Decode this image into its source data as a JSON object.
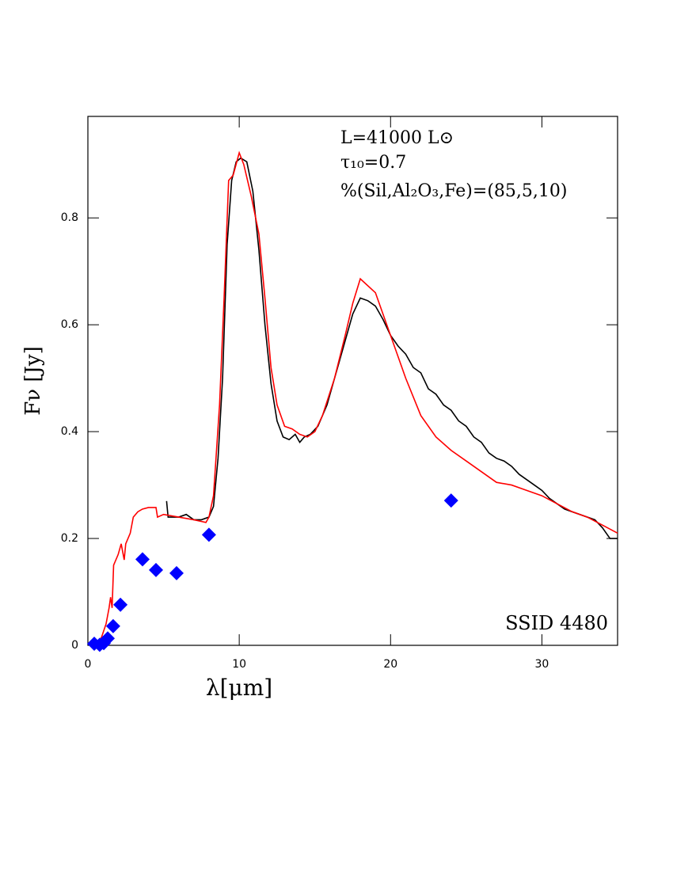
{
  "chart_data": {
    "type": "line",
    "x_label": "λ[μm]",
    "y_label": "Fν [Jy]",
    "annotations": [
      "L=41000 L⊙",
      "τ₁₀=0.7",
      "%(Sil,Al₂O₃,Fe)=(85,5,10)",
      "SSID 4480"
    ],
    "xlim": [
      0,
      35
    ],
    "ylim": [
      0,
      0.99
    ],
    "xticks": [
      0,
      10,
      20,
      30
    ],
    "yticks": [
      0,
      0.2,
      0.4,
      0.6,
      0.8
    ],
    "series": [
      {
        "type": "line",
        "color": "#000000",
        "x": [
          5.2,
          5.3,
          6,
          6.5,
          7,
          7.5,
          8,
          8.3,
          8.6,
          8.9,
          9.2,
          9.5,
          9.8,
          10.1,
          10.5,
          10.9,
          11.3,
          11.7,
          12.1,
          12.5,
          12.9,
          13.3,
          13.7,
          14.0,
          14.3,
          14.7,
          15.2,
          15.8,
          16.4,
          17,
          17.5,
          18,
          18.5,
          19,
          19.5,
          20,
          20.5,
          21,
          21.5,
          22,
          22.5,
          23,
          23.5,
          24,
          24.5,
          25,
          25.5,
          26,
          26.5,
          27,
          27.5,
          28,
          28.5,
          29,
          29.5,
          30,
          30.5,
          31,
          31.5,
          32,
          32.5,
          33,
          33.5,
          34,
          34.5,
          35
        ],
        "values": [
          0.27,
          0.24,
          0.24,
          0.245,
          0.235,
          0.235,
          0.24,
          0.26,
          0.35,
          0.5,
          0.75,
          0.87,
          0.905,
          0.912,
          0.905,
          0.85,
          0.74,
          0.6,
          0.49,
          0.42,
          0.39,
          0.385,
          0.395,
          0.38,
          0.39,
          0.395,
          0.41,
          0.45,
          0.51,
          0.57,
          0.62,
          0.65,
          0.645,
          0.635,
          0.61,
          0.58,
          0.56,
          0.545,
          0.52,
          0.51,
          0.48,
          0.47,
          0.45,
          0.44,
          0.42,
          0.41,
          0.39,
          0.38,
          0.36,
          0.35,
          0.345,
          0.335,
          0.32,
          0.31,
          0.3,
          0.29,
          0.275,
          0.265,
          0.255,
          0.25,
          0.245,
          0.24,
          0.235,
          0.22,
          0.2,
          0.2
        ]
      },
      {
        "type": "line",
        "color": "#ff0000",
        "x": [
          0.3,
          0.6,
          0.9,
          1.2,
          1.4,
          1.5,
          1.6,
          1.7,
          2.0,
          2.2,
          2.4,
          2.5,
          2.8,
          3.0,
          3.3,
          3.6,
          4.0,
          4.5,
          4.6,
          5,
          6,
          7,
          7.8,
          8.0,
          8.3,
          8.7,
          9.0,
          9.3,
          9.6,
          10.0,
          10.3,
          10.8,
          11.3,
          11.7,
          12.1,
          12.5,
          13,
          13.5,
          14,
          14.5,
          15,
          15.5,
          16.3,
          17,
          17.5,
          18.0,
          19,
          20,
          21,
          22,
          23,
          24,
          25,
          26,
          27,
          28,
          29,
          30,
          31,
          32,
          33,
          34,
          35
        ],
        "values": [
          0.0,
          0.003,
          0.015,
          0.04,
          0.07,
          0.09,
          0.07,
          0.15,
          0.17,
          0.19,
          0.16,
          0.19,
          0.21,
          0.24,
          0.25,
          0.255,
          0.258,
          0.258,
          0.24,
          0.245,
          0.24,
          0.235,
          0.23,
          0.24,
          0.28,
          0.45,
          0.65,
          0.87,
          0.88,
          0.922,
          0.9,
          0.84,
          0.77,
          0.65,
          0.52,
          0.45,
          0.41,
          0.405,
          0.395,
          0.39,
          0.4,
          0.43,
          0.5,
          0.58,
          0.64,
          0.686,
          0.66,
          0.58,
          0.5,
          0.43,
          0.39,
          0.365,
          0.345,
          0.325,
          0.305,
          0.3,
          0.29,
          0.28,
          0.265,
          0.25,
          0.24,
          0.225,
          0.21
        ]
      },
      {
        "type": "scatter",
        "color": "#0000ff",
        "x": [
          0.42,
          0.78,
          1.05,
          1.31,
          1.67,
          2.15,
          3.61,
          4.5,
          5.86,
          8.0,
          24.0
        ],
        "values": [
          0.003,
          0.001,
          0.004,
          0.013,
          0.036,
          0.076,
          0.161,
          0.141,
          0.135,
          0.207,
          0.271
        ]
      }
    ]
  }
}
